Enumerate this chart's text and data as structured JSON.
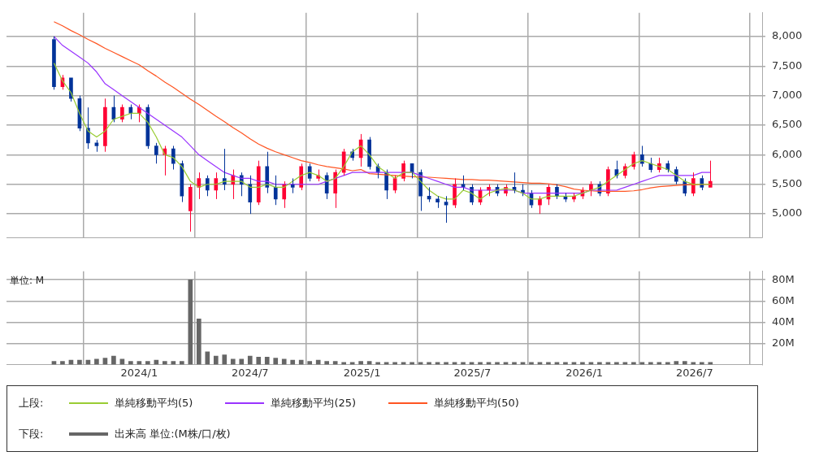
{
  "chart_data": [
    {
      "type": "candlestick",
      "legend_title": "上段:",
      "legend": "bottom",
      "grid": true,
      "tick_labels": "y",
      "xlim": [
        "2023-05-28",
        "2026-10-20"
      ],
      "xticks": [
        {
          "value": "2024-01-01",
          "label": null
        },
        {
          "value": "2024-07-01",
          "label": null
        },
        {
          "value": "2025-01-01",
          "label": null
        },
        {
          "value": "2025-07-01",
          "label": null
        },
        {
          "value": "2026-01-01",
          "label": null
        },
        {
          "value": "2026-07-01",
          "label": null
        }
      ],
      "ylim": [
        4600,
        8400
      ],
      "yticks": [
        {
          "value": 5000,
          "label": "5,000"
        },
        {
          "value": 5500,
          "label": "5,500"
        },
        {
          "value": 6000,
          "label": "6,000"
        },
        {
          "value": 6500,
          "label": "6,500"
        },
        {
          "value": 7000,
          "label": "7,000"
        },
        {
          "value": 7500,
          "label": "7,500"
        },
        {
          "value": 8000,
          "label": "8,000"
        }
      ],
      "x": [
        "2023-08-14",
        "2023-08-28",
        "2023-09-11",
        "2023-09-25",
        "2023-10-09",
        "2023-10-23",
        "2023-11-06",
        "2023-11-20",
        "2023-12-04",
        "2023-12-18",
        "2024-01-01",
        "2024-01-15",
        "2024-01-29",
        "2024-02-12",
        "2024-02-26",
        "2024-03-11",
        "2024-03-25",
        "2024-04-08",
        "2024-04-22",
        "2024-05-06",
        "2024-05-20",
        "2024-06-03",
        "2024-06-17",
        "2024-07-01",
        "2024-07-15",
        "2024-07-29",
        "2024-08-12",
        "2024-08-26",
        "2024-09-09",
        "2024-09-23",
        "2024-10-07",
        "2024-10-21",
        "2024-11-04",
        "2024-11-18",
        "2024-12-02",
        "2024-12-16",
        "2024-12-30",
        "2025-01-13",
        "2025-01-27",
        "2025-02-10",
        "2025-02-24",
        "2025-03-10",
        "2025-03-24",
        "2025-04-07",
        "2025-04-21",
        "2025-05-05",
        "2025-05-19",
        "2025-06-02",
        "2025-06-16",
        "2025-06-30",
        "2025-07-14",
        "2025-07-28",
        "2025-08-11",
        "2025-08-25",
        "2025-09-08",
        "2025-09-22",
        "2025-10-06",
        "2025-10-20",
        "2025-11-03",
        "2025-11-17",
        "2025-12-01",
        "2025-12-15",
        "2025-12-29",
        "2026-01-12",
        "2026-01-26",
        "2026-02-09",
        "2026-02-23",
        "2026-03-09",
        "2026-03-23",
        "2026-04-06",
        "2026-04-20",
        "2026-05-04",
        "2026-05-18",
        "2026-06-01",
        "2026-06-15",
        "2026-06-29",
        "2026-07-13",
        "2026-07-27"
      ],
      "ohlc": [
        [
          7950,
          8000,
          7100,
          7150
        ],
        [
          7150,
          7350,
          7100,
          7300
        ],
        [
          7300,
          7300,
          6900,
          6950
        ],
        [
          6950,
          7000,
          6400,
          6450
        ],
        [
          6450,
          6800,
          6100,
          6200
        ],
        [
          6200,
          6250,
          6050,
          6150
        ],
        [
          6150,
          6950,
          6050,
          6800
        ],
        [
          6800,
          7000,
          6550,
          6600
        ],
        [
          6600,
          6850,
          6550,
          6800
        ],
        [
          6800,
          6850,
          6600,
          6700
        ],
        [
          6700,
          6850,
          6550,
          6800
        ],
        [
          6800,
          6850,
          6100,
          6150
        ],
        [
          6150,
          6200,
          5850,
          6000
        ],
        [
          6000,
          6150,
          5650,
          6100
        ],
        [
          6100,
          6150,
          5750,
          5850
        ],
        [
          5850,
          5900,
          5200,
          5300
        ],
        [
          5050,
          5500,
          4700,
          5450
        ],
        [
          5450,
          5700,
          5250,
          5600
        ],
        [
          5600,
          5650,
          5300,
          5400
        ],
        [
          5400,
          5700,
          5250,
          5600
        ],
        [
          5600,
          6100,
          5400,
          5500
        ],
        [
          5500,
          5750,
          5250,
          5650
        ],
        [
          5650,
          5700,
          5300,
          5500
        ],
        [
          5500,
          5650,
          5000,
          5200
        ],
        [
          5200,
          5900,
          5150,
          5800
        ],
        [
          5800,
          6050,
          5350,
          5450
        ],
        [
          5450,
          5650,
          5150,
          5250
        ],
        [
          5250,
          5550,
          5100,
          5500
        ],
        [
          5500,
          5600,
          5350,
          5450
        ],
        [
          5450,
          5850,
          5400,
          5800
        ],
        [
          5800,
          5850,
          5550,
          5600
        ],
        [
          5600,
          5750,
          5550,
          5650
        ],
        [
          5650,
          5700,
          5250,
          5350
        ],
        [
          5350,
          5750,
          5100,
          5700
        ],
        [
          5700,
          6100,
          5650,
          6050
        ],
        [
          6050,
          6100,
          5900,
          5950
        ],
        [
          5950,
          6350,
          5800,
          6250
        ],
        [
          6250,
          6300,
          5750,
          5800
        ],
        [
          5800,
          5850,
          5600,
          5700
        ],
        [
          5700,
          5750,
          5250,
          5400
        ],
        [
          5400,
          5650,
          5350,
          5600
        ],
        [
          5600,
          5900,
          5550,
          5850
        ],
        [
          5850,
          5850,
          5600,
          5700
        ],
        [
          5700,
          5750,
          5050,
          5300
        ],
        [
          5300,
          5450,
          5200,
          5250
        ],
        [
          5250,
          5300,
          5100,
          5200
        ],
        [
          5200,
          5300,
          4850,
          5150
        ],
        [
          5150,
          5600,
          5100,
          5500
        ],
        [
          5500,
          5650,
          5400,
          5450
        ],
        [
          5450,
          5500,
          5150,
          5200
        ],
        [
          5200,
          5450,
          5150,
          5400
        ],
        [
          5400,
          5500,
          5300,
          5450
        ],
        [
          5450,
          5500,
          5300,
          5350
        ],
        [
          5350,
          5500,
          5300,
          5450
        ],
        [
          5450,
          5700,
          5350,
          5400
        ],
        [
          5400,
          5500,
          5300,
          5350
        ],
        [
          5350,
          5400,
          5100,
          5150
        ],
        [
          5150,
          5300,
          5000,
          5250
        ],
        [
          5250,
          5500,
          5150,
          5450
        ],
        [
          5450,
          5500,
          5250,
          5300
        ],
        [
          5300,
          5350,
          5200,
          5250
        ],
        [
          5250,
          5350,
          5200,
          5300
        ],
        [
          5300,
          5450,
          5250,
          5400
        ],
        [
          5400,
          5550,
          5300,
          5500
        ],
        [
          5500,
          5550,
          5300,
          5350
        ],
        [
          5350,
          5800,
          5300,
          5750
        ],
        [
          5750,
          5900,
          5600,
          5650
        ],
        [
          5650,
          5850,
          5600,
          5800
        ],
        [
          5800,
          6050,
          5750,
          6000
        ],
        [
          6000,
          6150,
          5800,
          5850
        ],
        [
          5850,
          5950,
          5700,
          5750
        ],
        [
          5750,
          5950,
          5700,
          5850
        ],
        [
          5850,
          5900,
          5700,
          5750
        ],
        [
          5750,
          5800,
          5500,
          5550
        ],
        [
          5550,
          5600,
          5300,
          5350
        ],
        [
          5350,
          5700,
          5300,
          5600
        ],
        [
          5600,
          5650,
          5400,
          5450
        ],
        [
          5450,
          5900,
          5450,
          5550
        ]
      ],
      "colors": [
        "#003399",
        "#ff0033",
        "#003399",
        "#003399",
        "#003399",
        "#003399",
        "#ff0033",
        "#003399",
        "#ff0033",
        "#003399",
        "#ff0033",
        "#003399",
        "#003399",
        "#ff0033",
        "#003399",
        "#003399",
        "#ff0033",
        "#ff0033",
        "#003399",
        "#ff0033",
        "#003399",
        "#ff0033",
        "#003399",
        "#003399",
        "#ff0033",
        "#003399",
        "#003399",
        "#ff0033",
        "#003399",
        "#ff0033",
        "#003399",
        "#ff0033",
        "#003399",
        "#ff0033",
        "#ff0033",
        "#003399",
        "#ff0033",
        "#003399",
        "#003399",
        "#003399",
        "#ff0033",
        "#ff0033",
        "#003399",
        "#003399",
        "#003399",
        "#003399",
        "#003399",
        "#ff0033",
        "#003399",
        "#003399",
        "#ff0033",
        "#ff0033",
        "#003399",
        "#ff0033",
        "#003399",
        "#003399",
        "#003399",
        "#ff0033",
        "#ff0033",
        "#003399",
        "#003399",
        "#ff0033",
        "#ff0033",
        "#ff0033",
        "#003399",
        "#ff0033",
        "#003399",
        "#ff0033",
        "#ff0033",
        "#003399",
        "#003399",
        "#ff0033",
        "#003399",
        "#003399",
        "#003399",
        "#ff0033",
        "#003399",
        "#ff0033"
      ],
      "series": [
        {
          "type": "line",
          "name": "単純移動平均(5)",
          "color": "#99cc33",
          "values": [
            7550,
            7250,
            7050,
            6700,
            6400,
            6300,
            6400,
            6600,
            6650,
            6700,
            6700,
            6550,
            6300,
            6000,
            5950,
            5800,
            5550,
            5450,
            5500,
            5500,
            5550,
            5550,
            5550,
            5450,
            5450,
            5500,
            5450,
            5450,
            5550,
            5650,
            5700,
            5650,
            5550,
            5600,
            5800,
            6050,
            6150,
            6000,
            5800,
            5700,
            5600,
            5700,
            5700,
            5550,
            5400,
            5300,
            5250,
            5250,
            5400,
            5350,
            5250,
            5350,
            5400,
            5430,
            5400,
            5350,
            5250,
            5250,
            5300,
            5300,
            5300,
            5300,
            5350,
            5400,
            5450,
            5550,
            5650,
            5750,
            5850,
            5900,
            5850,
            5800,
            5750,
            5650,
            5550,
            5500,
            5500,
            5500
          ]
        },
        {
          "type": "line",
          "name": "単純移動平均(25)",
          "color": "#9933ff",
          "values": [
            8000,
            7850,
            7750,
            7650,
            7550,
            7400,
            7200,
            7100,
            7000,
            6900,
            6800,
            6700,
            6600,
            6500,
            6400,
            6300,
            6150,
            6000,
            5900,
            5800,
            5700,
            5650,
            5600,
            5600,
            5550,
            5550,
            5500,
            5500,
            5500,
            5500,
            5500,
            5500,
            5550,
            5600,
            5650,
            5700,
            5700,
            5700,
            5700,
            5700,
            5700,
            5700,
            5700,
            5650,
            5600,
            5550,
            5500,
            5450,
            5450,
            5400,
            5400,
            5400,
            5400,
            5400,
            5400,
            5350,
            5350,
            5350,
            5350,
            5350,
            5350,
            5350,
            5350,
            5400,
            5400,
            5400,
            5400,
            5450,
            5500,
            5550,
            5600,
            5650,
            5650,
            5650,
            5650,
            5650,
            5700,
            5700
          ]
        },
        {
          "type": "line",
          "name": "単純移動平均(50)",
          "color": "#ff5522",
          "values": [
            8250,
            8180,
            8100,
            8030,
            7950,
            7880,
            7800,
            7730,
            7660,
            7590,
            7520,
            7420,
            7330,
            7230,
            7140,
            7040,
            6940,
            6850,
            6750,
            6650,
            6560,
            6460,
            6370,
            6270,
            6180,
            6110,
            6050,
            6000,
            5950,
            5900,
            5870,
            5830,
            5800,
            5780,
            5760,
            5730,
            5750,
            5680,
            5670,
            5660,
            5650,
            5640,
            5630,
            5620,
            5620,
            5610,
            5600,
            5590,
            5580,
            5580,
            5570,
            5570,
            5560,
            5550,
            5540,
            5530,
            5520,
            5520,
            5510,
            5490,
            5460,
            5420,
            5400,
            5390,
            5380,
            5380,
            5380,
            5380,
            5390,
            5410,
            5440,
            5460,
            5470,
            5480,
            5490,
            5490,
            5500,
            5500
          ]
        }
      ]
    },
    {
      "type": "bar",
      "legend_title": "下段:",
      "legend": "bottom",
      "grid": true,
      "annotations": [
        "単位: M"
      ],
      "xlim": [
        "2023-05-28",
        "2026-10-20"
      ],
      "xticks": [
        {
          "value": "2024-01-01",
          "label": "2024/1"
        },
        {
          "value": "2024-07-01",
          "label": "2024/7"
        },
        {
          "value": "2025-01-01",
          "label": "2025/1"
        },
        {
          "value": "2025-07-01",
          "label": "2025/7"
        },
        {
          "value": "2026-01-01",
          "label": "2026/1"
        },
        {
          "value": "2026-07-01",
          "label": "2026/7"
        }
      ],
      "ylim": [
        0,
        88
      ],
      "yticks": [
        {
          "value": 20,
          "label": "20M"
        },
        {
          "value": 40,
          "label": "40M"
        },
        {
          "value": 60,
          "label": "60M"
        },
        {
          "value": 80,
          "label": "80M"
        }
      ],
      "x": [
        "2023-08-14",
        "2023-08-28",
        "2023-09-11",
        "2023-09-25",
        "2023-10-09",
        "2023-10-23",
        "2023-11-06",
        "2023-11-20",
        "2023-12-04",
        "2023-12-18",
        "2024-01-01",
        "2024-01-15",
        "2024-01-29",
        "2024-02-12",
        "2024-02-26",
        "2024-03-11",
        "2024-03-25",
        "2024-04-08",
        "2024-04-22",
        "2024-05-06",
        "2024-05-20",
        "2024-06-03",
        "2024-06-17",
        "2024-07-01",
        "2024-07-15",
        "2024-07-29",
        "2024-08-12",
        "2024-08-26",
        "2024-09-09",
        "2024-09-23",
        "2024-10-07",
        "2024-10-21",
        "2024-11-04",
        "2024-11-18",
        "2024-12-02",
        "2024-12-16",
        "2024-12-30",
        "2025-01-13",
        "2025-01-27",
        "2025-02-10",
        "2025-02-24",
        "2025-03-10",
        "2025-03-24",
        "2025-04-07",
        "2025-04-21",
        "2025-05-05",
        "2025-05-19",
        "2025-06-02",
        "2025-06-16",
        "2025-06-30",
        "2025-07-14",
        "2025-07-28",
        "2025-08-11",
        "2025-08-25",
        "2025-09-08",
        "2025-09-22",
        "2025-10-06",
        "2025-10-20",
        "2025-11-03",
        "2025-11-17",
        "2025-12-01",
        "2025-12-15",
        "2025-12-29",
        "2026-01-12",
        "2026-01-26",
        "2026-02-09",
        "2026-02-23",
        "2026-03-09",
        "2026-03-23",
        "2026-04-06",
        "2026-04-20",
        "2026-05-04",
        "2026-05-18",
        "2026-06-01",
        "2026-06-15",
        "2026-06-29",
        "2026-07-13",
        "2026-07-27"
      ],
      "series": [
        {
          "name": "出来高 単位:(M株/口/枚)",
          "color": "#666666",
          "values": [
            3,
            3,
            4,
            4,
            4,
            5,
            6,
            8,
            5,
            3,
            3,
            3,
            4,
            3,
            3,
            3,
            80,
            43,
            12,
            8,
            9,
            5,
            5,
            8,
            7,
            7,
            6,
            5,
            4,
            4,
            3,
            4,
            3,
            3,
            2,
            2,
            3,
            3,
            2,
            2,
            2,
            2,
            2,
            2,
            2,
            2,
            2,
            2,
            2,
            2,
            2,
            2,
            2,
            2,
            2,
            2,
            2,
            2,
            2,
            2,
            2,
            2,
            2,
            2,
            2,
            2,
            2,
            2,
            2,
            2,
            2,
            2,
            2,
            3,
            3,
            2,
            2,
            2
          ]
        }
      ]
    }
  ]
}
